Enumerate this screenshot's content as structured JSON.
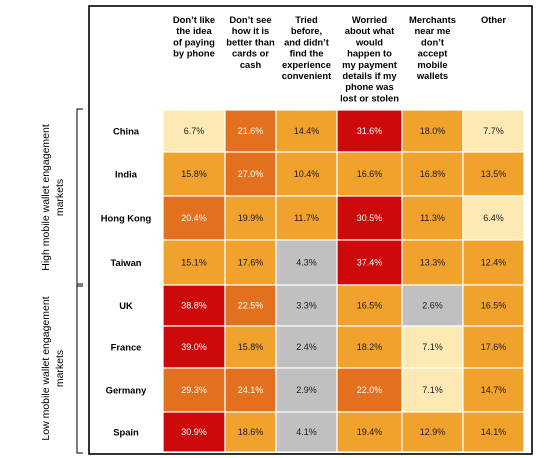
{
  "chart_data": {
    "type": "heatmap",
    "columns": [
      {
        "lines": [
          "Don’t like",
          "the idea",
          "of paying",
          "by phone"
        ]
      },
      {
        "lines": [
          "Don’t see",
          "how it is",
          "better than",
          "cards or",
          "cash"
        ]
      },
      {
        "lines": [
          "Tried",
          "before,",
          "and didn’t",
          "find the",
          "experience",
          "convenient"
        ]
      },
      {
        "lines": [
          "Worried",
          "about what",
          "would",
          "happen to",
          "my payment",
          "details if my",
          "phone was",
          "lost or stolen"
        ]
      },
      {
        "lines": [
          "Merchants",
          "near me",
          "don’t",
          "accept",
          "mobile",
          "wallets"
        ]
      },
      {
        "lines": [
          "Other"
        ]
      }
    ],
    "groups": [
      {
        "label_lines": [
          "High mobile wallet engagement",
          "markets"
        ],
        "rows": [
          0,
          1,
          2,
          3
        ]
      },
      {
        "label_lines": [
          "Low mobile wallet engagement",
          "markets"
        ],
        "rows": [
          4,
          5,
          6,
          7
        ]
      }
    ],
    "rows": [
      {
        "label": "China",
        "values": [
          6.7,
          21.6,
          14.4,
          31.6,
          18.0,
          7.7
        ],
        "text": [
          "6.7%",
          "21.6%",
          "14.4%",
          "31.6%",
          "18.0%",
          "7.7%"
        ]
      },
      {
        "label": "India",
        "values": [
          15.8,
          27.0,
          10.4,
          16.6,
          16.8,
          13.5
        ],
        "text": [
          "15.8%",
          "27.0%",
          "10.4%",
          "16.6%",
          "16.8%",
          "13.5%"
        ]
      },
      {
        "label": "Hong Kong",
        "values": [
          20.4,
          19.9,
          11.7,
          30.5,
          11.3,
          6.4
        ],
        "text": [
          "20.4%",
          "19.9%",
          "11.7%",
          "30.5%",
          "11.3%",
          "6.4%"
        ]
      },
      {
        "label": "Taiwan",
        "values": [
          15.1,
          17.6,
          4.3,
          37.4,
          13.3,
          12.4
        ],
        "text": [
          "15.1%",
          "17.6%",
          "4.3%",
          "37.4%",
          "13.3%",
          "12.4%"
        ]
      },
      {
        "label": "UK",
        "values": [
          38.8,
          22.5,
          3.3,
          16.5,
          2.6,
          16.5
        ],
        "text": [
          "38.8%",
          "22.5%",
          "3.3%",
          "16.5%",
          "2.6%",
          "16.5%"
        ]
      },
      {
        "label": "France",
        "values": [
          39.0,
          15.8,
          2.4,
          18.2,
          7.1,
          17.6
        ],
        "text": [
          "39.0%",
          "15.8%",
          "2.4%",
          "18.2%",
          "7.1%",
          "17.6%"
        ]
      },
      {
        "label": "Germany",
        "values": [
          29.3,
          24.1,
          2.9,
          22.0,
          7.1,
          14.7
        ],
        "text": [
          "29.3%",
          "24.1%",
          "2.9%",
          "22.0%",
          "7.1%",
          "14.7%"
        ]
      },
      {
        "label": "Spain",
        "values": [
          30.9,
          18.6,
          4.1,
          19.4,
          12.9,
          14.1
        ],
        "text": [
          "30.9%",
          "18.6%",
          "4.1%",
          "19.4%",
          "12.9%",
          "14.1%"
        ]
      }
    ],
    "color_scale": [
      {
        "max": 6.0,
        "color": "#c0c0c0"
      },
      {
        "max": 10.0,
        "color": "#fde9b4"
      },
      {
        "max": 20.0,
        "color": "#f0a22c"
      },
      {
        "max": 30.0,
        "color": "#e2701e"
      },
      {
        "max": 100,
        "color": "#cc0a0a"
      }
    ],
    "cell_color_overrides": [
      {
        "row": 2,
        "col": 5,
        "color": "#fde9b4"
      },
      {
        "row": 5,
        "col": 4,
        "color": "#fde9b4"
      },
      {
        "row": 6,
        "col": 4,
        "color": "#fde9b4"
      },
      {
        "row": 6,
        "col": 0,
        "color": "#e2701e"
      },
      {
        "row": 7,
        "col": 0,
        "color": "#cc0a0a"
      }
    ],
    "text_colors": {
      "dark_bg": "#ffffff",
      "light_bg": "#1a1a1a"
    },
    "grid_line_color": "#ffffff",
    "border_color": "#000000"
  }
}
